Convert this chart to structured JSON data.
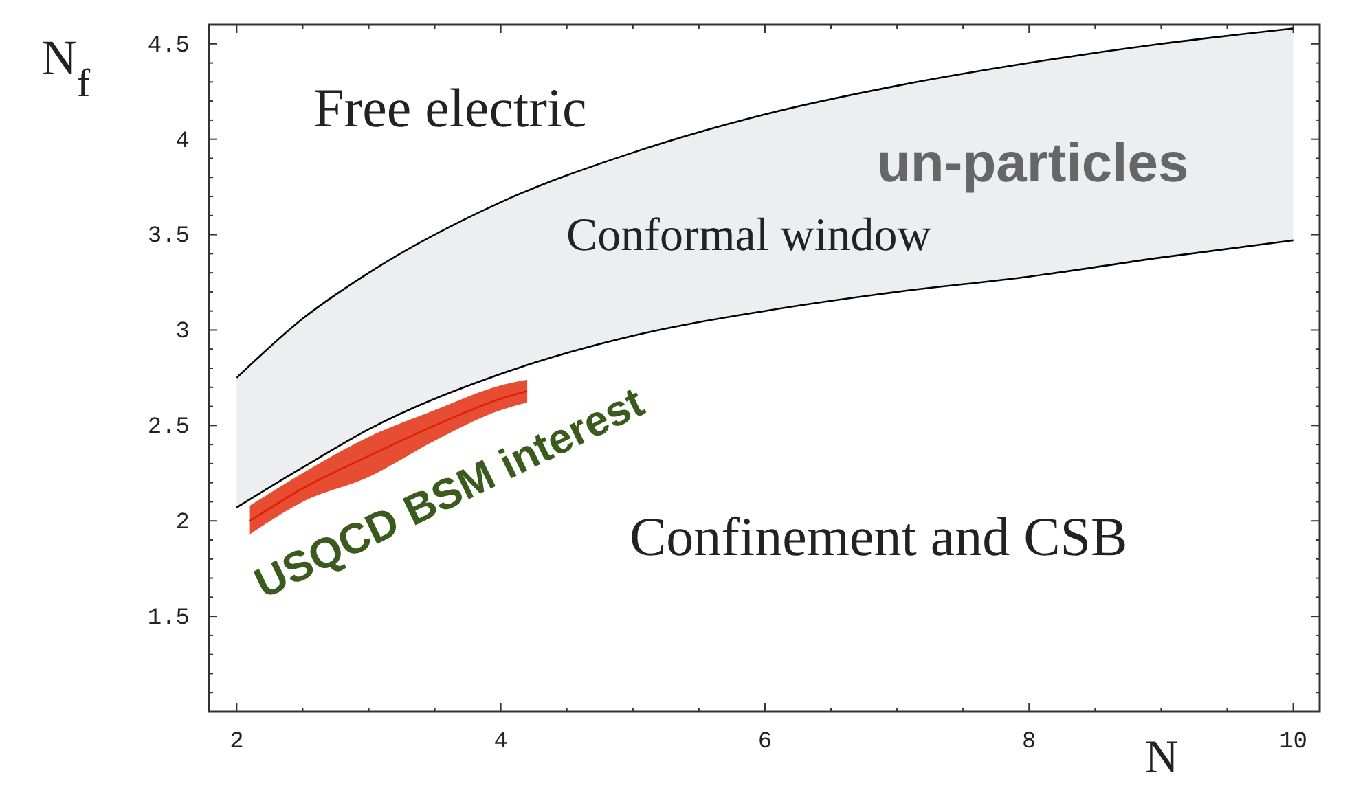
{
  "chart_data": {
    "type": "line",
    "xlabel": "N",
    "ylabel": "N$_{f}$",
    "x": [
      2,
      2.5,
      3,
      4,
      5,
      6,
      7,
      8,
      9,
      10
    ],
    "xlim": [
      1.79,
      10.2
    ],
    "ylim": [
      1.0,
      4.6
    ],
    "xticks": [
      2,
      {
        "value": 2.5,
        "label": null
      },
      {
        "value": 3,
        "label": null
      },
      {
        "value": 3.5,
        "label": null
      },
      4,
      {
        "value": 4.5,
        "label": null
      },
      {
        "value": 5,
        "label": null
      },
      {
        "value": 5.5,
        "label": null
      },
      6,
      {
        "value": 6.5,
        "label": null
      },
      {
        "value": 7,
        "label": null
      },
      {
        "value": 7.5,
        "label": null
      },
      8,
      {
        "value": 8.5,
        "label": null
      },
      {
        "value": 9,
        "label": null
      },
      {
        "value": 9.5,
        "label": null
      },
      10
    ],
    "yticks": [
      {
        "value": 1.1,
        "label": null
      },
      {
        "value": 1.2,
        "label": null
      },
      {
        "value": 1.3,
        "label": null
      },
      {
        "value": 1.4,
        "label": null
      },
      1.5,
      {
        "value": 1.6,
        "label": null
      },
      {
        "value": 1.7,
        "label": null
      },
      {
        "value": 1.8,
        "label": null
      },
      {
        "value": 1.9,
        "label": null
      },
      2,
      {
        "value": 2.1,
        "label": null
      },
      {
        "value": 2.2,
        "label": null
      },
      {
        "value": 2.3,
        "label": null
      },
      {
        "value": 2.4,
        "label": null
      },
      2.5,
      {
        "value": 2.6,
        "label": null
      },
      {
        "value": 2.7,
        "label": null
      },
      {
        "value": 2.8,
        "label": null
      },
      {
        "value": 2.9,
        "label": null
      },
      3,
      {
        "value": 3.1,
        "label": null
      },
      {
        "value": 3.2,
        "label": null
      },
      {
        "value": 3.3,
        "label": null
      },
      {
        "value": 3.4,
        "label": null
      },
      3.5,
      {
        "value": 3.6,
        "label": null
      },
      {
        "value": 3.7,
        "label": null
      },
      {
        "value": 3.8,
        "label": null
      },
      {
        "value": 3.9,
        "label": null
      },
      4,
      {
        "value": 4.1,
        "label": null
      },
      {
        "value": 4.2,
        "label": null
      },
      {
        "value": 4.3,
        "label": null
      },
      {
        "value": 4.4,
        "label": null
      },
      4.5
    ],
    "series": [
      {
        "color": "#000000",
        "values": [
          2.75,
          3.06,
          3.3,
          3.67,
          3.93,
          4.13,
          4.28,
          4.4,
          4.5,
          4.58
        ],
        "lower": [
          2.07,
          2.28,
          2.48,
          2.77,
          2.97,
          3.1,
          3.2,
          3.28,
          3.38,
          3.47
        ],
        "upper": [
          2.75,
          3.06,
          3.3,
          3.67,
          3.93,
          4.13,
          4.28,
          4.4,
          4.5,
          4.58
        ]
      },
      {
        "color": "#000000",
        "values": [
          2.07,
          2.28,
          2.48,
          2.77,
          2.97,
          3.1,
          3.2,
          3.28,
          3.38,
          3.47
        ]
      },
      {
        "type": "line",
        "color": "#e02000",
        "x": [
          2.1,
          2.5,
          3,
          3.5,
          4,
          4.2
        ],
        "values": [
          2.0,
          2.17,
          2.34,
          2.5,
          2.64,
          2.68
        ],
        "lower": [
          1.93,
          2.1,
          2.23,
          2.42,
          2.58,
          2.62
        ],
        "upper": [
          2.08,
          2.25,
          2.44,
          2.58,
          2.71,
          2.74
        ]
      }
    ],
    "annotations": [
      "Free electric",
      "Conformal window",
      "un-particles",
      "Confinement and CSB",
      "USQCD BSM interest"
    ],
    "grid": false,
    "marker": "none",
    "line_style": "solid"
  }
}
